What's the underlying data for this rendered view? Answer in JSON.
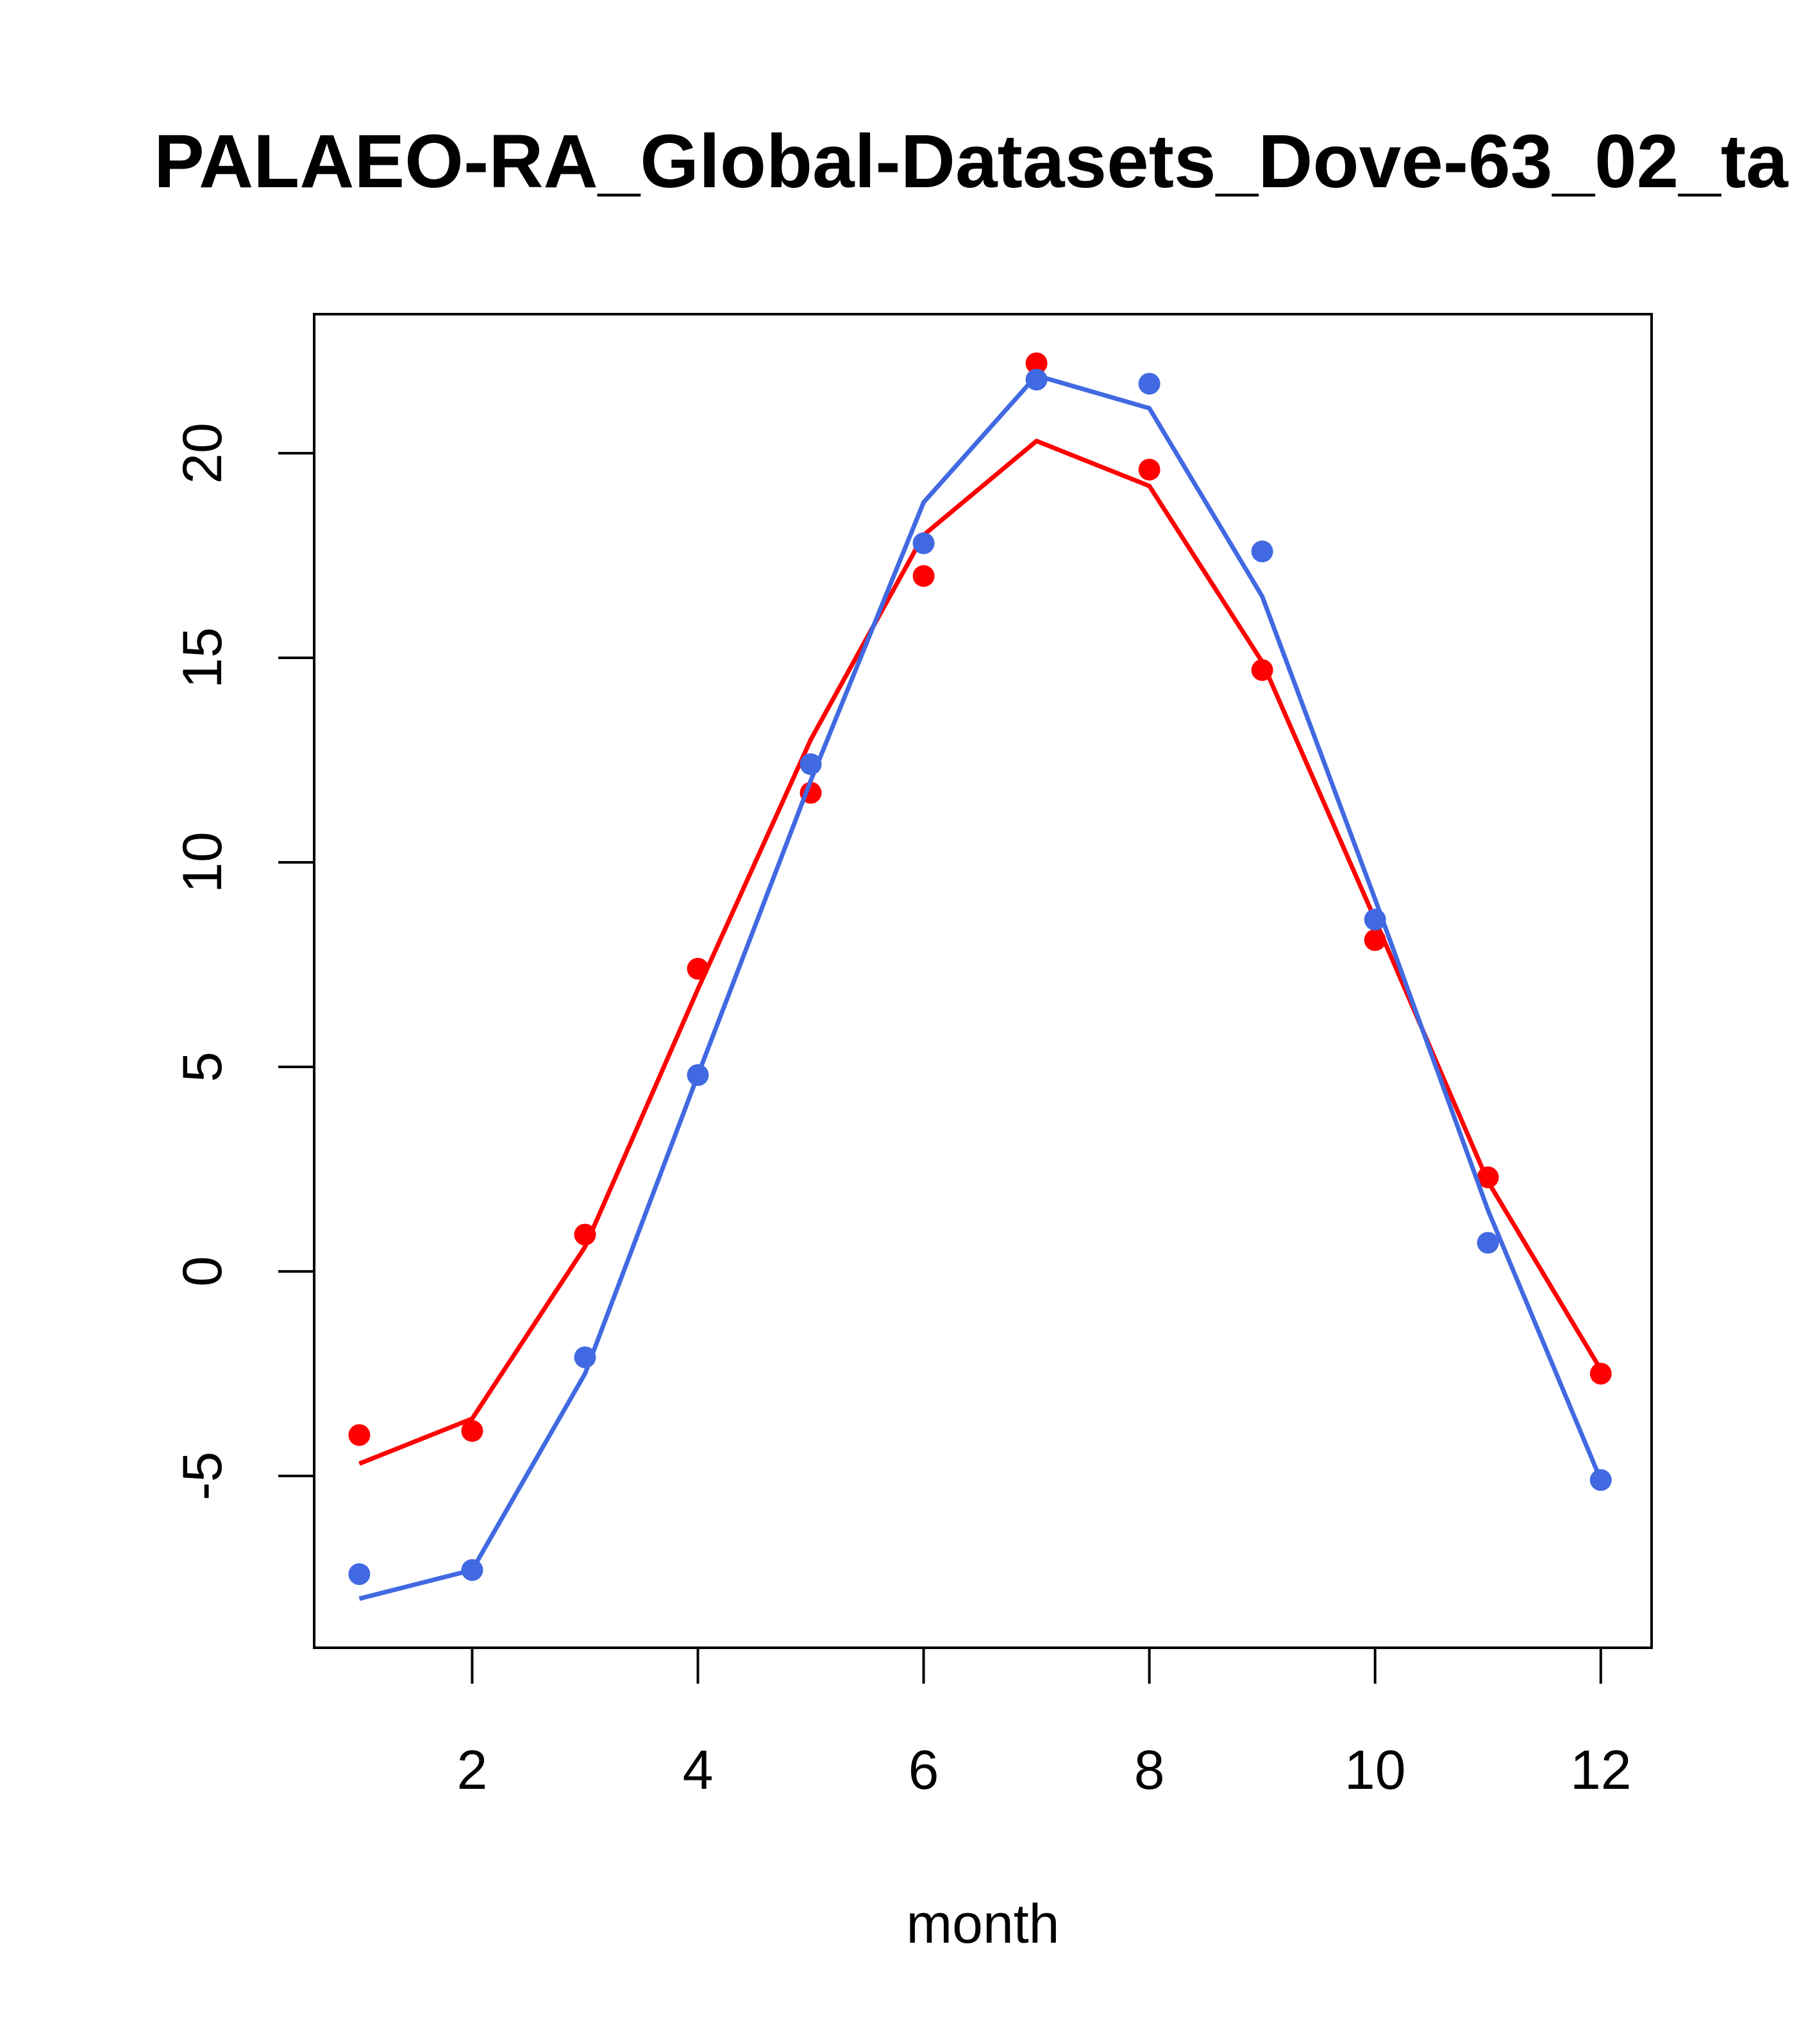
{
  "chart_data": {
    "type": "line",
    "title": "PALAEO-RA_Global-Datasets_Dove-63_02_ta",
    "xlabel": "month",
    "ylabel": "",
    "xlim": [
      0.6,
      12.45
    ],
    "ylim": [
      -9.2,
      23.4
    ],
    "x_ticks": [
      2,
      4,
      6,
      8,
      10,
      12
    ],
    "y_ticks": [
      -5,
      0,
      5,
      10,
      15,
      20
    ],
    "grid": false,
    "legend": "none",
    "x": [
      1,
      2,
      3,
      4,
      5,
      6,
      7,
      8,
      9,
      10,
      11,
      12
    ],
    "series": [
      {
        "color": "#ff0000",
        "points": [
          -4.0,
          -3.9,
          0.9,
          7.4,
          11.7,
          17.0,
          22.2,
          19.6,
          14.7,
          8.1,
          2.3,
          -2.5
        ],
        "line": [
          -4.7,
          -3.6,
          0.6,
          6.9,
          13.0,
          18.0,
          20.3,
          19.2,
          14.9,
          8.6,
          2.2,
          -2.4
        ]
      },
      {
        "color": "#4169e1",
        "points": [
          -7.4,
          -7.3,
          -2.1,
          4.8,
          12.4,
          17.8,
          21.8,
          21.7,
          17.6,
          8.6,
          0.7,
          -5.1
        ],
        "line": [
          -8.0,
          -7.3,
          -2.5,
          4.8,
          12.0,
          18.8,
          21.9,
          21.1,
          16.5,
          9.1,
          1.5,
          -5.1
        ]
      }
    ]
  }
}
